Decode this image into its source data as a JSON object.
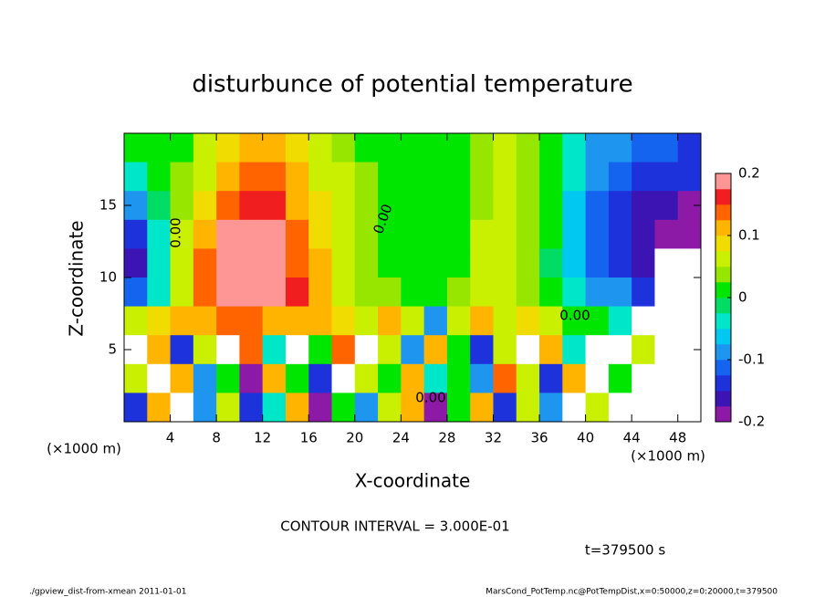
{
  "chart_data": {
    "type": "heatmap",
    "title": "disturbunce of potential temperature",
    "x_label": "X-coordinate",
    "y_label": "Z-coordinate",
    "x_unit": "(×1000 m)",
    "x_unit_right": "(×1000 m)",
    "contour_interval": "CONTOUR INTERVAL = 3.000E-01",
    "time_label": "t=379500 s",
    "contour_labels": [
      "0.00",
      "0.00",
      "0.00",
      "0.00"
    ],
    "footer_left": "./gpview_dist-from-xmean  2011-01-01",
    "footer_right": "MarsCond_PotTemp.nc@PotTempDist,x=0:50000,z=0:20000,t=379500",
    "xlim": [
      0,
      50
    ],
    "ylim": [
      0,
      20
    ],
    "xticks": [
      4,
      8,
      12,
      16,
      20,
      24,
      28,
      32,
      36,
      40,
      44,
      48
    ],
    "yticks": [
      5,
      10,
      15
    ],
    "clim": [
      -0.2,
      0.2
    ],
    "cticks": [
      -0.2,
      -0.1,
      0,
      0.1,
      0.2
    ],
    "colors": [
      "#8c1aa6",
      "#3c14b4",
      "#1e32dc",
      "#1464f0",
      "#1e96f0",
      "#00c8f0",
      "#00e6c8",
      "#00dc64",
      "#00e600",
      "#96e600",
      "#c8f000",
      "#f0dc00",
      "#ffb400",
      "#ff6400",
      "#f01e1e",
      "#ff9696"
    ],
    "out_of_range_color": "#ffffff",
    "x": [
      1,
      3,
      5,
      7,
      9,
      11,
      13,
      15,
      17,
      19,
      21,
      23,
      25,
      27,
      29,
      31,
      33,
      35,
      37,
      39,
      41,
      43,
      45,
      47,
      49
    ],
    "y": [
      19,
      17,
      15,
      13,
      11,
      9,
      7,
      5,
      3,
      1
    ],
    "values": [
      [
        0,
        0,
        0.02,
        0.05,
        0.08,
        0.1,
        0.1,
        0.08,
        0.06,
        0.04,
        0.02,
        0.01,
        0,
        0,
        0.01,
        0.03,
        0.05,
        0.04,
        0,
        -0.04,
        -0.08,
        -0.1,
        -0.12,
        -0.12,
        -0.13
      ],
      [
        -0.05,
        0,
        0.03,
        0.07,
        0.12,
        0.14,
        0.13,
        0.1,
        0.07,
        0.05,
        0.03,
        0.01,
        0,
        0,
        0.02,
        0.04,
        0.05,
        0.04,
        0,
        -0.05,
        -0.1,
        -0.12,
        -0.14,
        -0.15,
        -0.15
      ],
      [
        -0.1,
        -0.02,
        0.04,
        0.09,
        0.15,
        0.17,
        0.16,
        0.12,
        0.08,
        0.05,
        0.03,
        0.02,
        0,
        0,
        0.02,
        0.04,
        0.05,
        0.04,
        0,
        -0.06,
        -0.11,
        -0.14,
        -0.16,
        -0.17,
        -0.18
      ],
      [
        -0.15,
        -0.03,
        0.05,
        0.12,
        0.18,
        0.2,
        0.18,
        0.14,
        0.09,
        0.05,
        0.03,
        0.02,
        0.01,
        0,
        0.02,
        0.05,
        0.05,
        0.04,
        0,
        -0.06,
        -0.12,
        -0.15,
        -0.17,
        -0.19,
        -0.2
      ],
      [
        -0.16,
        -0.05,
        0.05,
        0.13,
        0.18,
        0.19,
        0.18,
        0.15,
        0.1,
        0.06,
        0.04,
        0.02,
        0.01,
        0,
        0.02,
        0.05,
        0.05,
        0.04,
        -0.01,
        -0.07,
        -0.12,
        -0.14,
        -0.16,
        -0.22,
        -0.25
      ],
      [
        -0.12,
        -0.04,
        0.06,
        0.14,
        0.19,
        0.2,
        0.19,
        0.16,
        0.1,
        0.06,
        0.04,
        0.03,
        0.02,
        0.01,
        0.03,
        0.05,
        0.05,
        0.04,
        0,
        -0.05,
        -0.08,
        -0.1,
        -0.15,
        -0.25,
        -0.25
      ],
      [
        0.05,
        0.08,
        0.1,
        0.12,
        0.15,
        0.15,
        0.12,
        0.1,
        0.1,
        0.08,
        0.05,
        0.1,
        0.05,
        -0.1,
        0.05,
        0.1,
        0.05,
        0.08,
        0.05,
        0.02,
        0,
        -0.05,
        -0.25,
        -0.25,
        -0.25
      ],
      [
        -0.25,
        0.1,
        -0.15,
        0.05,
        -0.25,
        0.15,
        -0.05,
        -0.25,
        0.02,
        0.15,
        -0.25,
        0.05,
        -0.1,
        0.1,
        0,
        -0.15,
        0.05,
        -0.25,
        0.1,
        -0.05,
        -0.25,
        -0.25,
        0.05,
        -0.25,
        -0.25
      ],
      [
        0.05,
        -0.25,
        0.1,
        -0.1,
        0,
        -0.2,
        0.1,
        0.02,
        -0.15,
        -0.25,
        0.05,
        0,
        0.12,
        -0.05,
        0.02,
        -0.1,
        0.15,
        0.05,
        -0.15,
        0.1,
        -0.25,
        0,
        -0.25,
        -0.25,
        -0.25
      ],
      [
        -0.15,
        0.1,
        -0.25,
        -0.1,
        0.05,
        -0.15,
        -0.05,
        0.1,
        -0.2,
        0,
        -0.1,
        0.05,
        0.1,
        -0.2,
        0,
        0.1,
        -0.15,
        0.05,
        -0.1,
        -0.25,
        0.05,
        -0.25,
        -0.25,
        -0.25,
        -0.25
      ]
    ]
  }
}
